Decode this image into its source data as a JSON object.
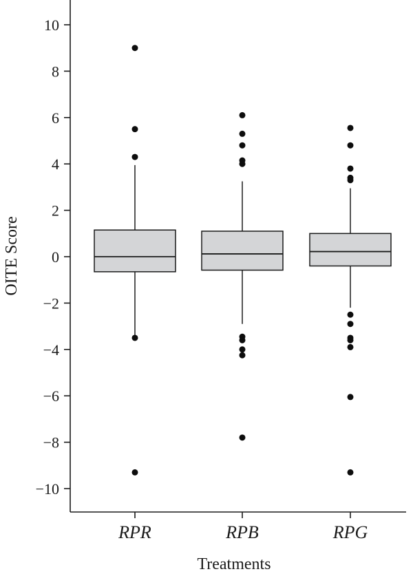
{
  "chart_data": {
    "type": "box",
    "xlabel": "Treatments",
    "ylabel": "OITE Score",
    "ylim": [
      -11,
      11
    ],
    "yticks": [
      10,
      8,
      6,
      4,
      2,
      0,
      -2,
      -4,
      -6,
      -8,
      -10
    ],
    "ytick_labels": [
      "10",
      "8",
      "6",
      "4",
      "2",
      "0",
      "−2",
      "−4",
      "−6",
      "−8",
      "−10"
    ],
    "categories": [
      "RPR",
      "RPB",
      "RPG"
    ],
    "box_color": "#d4d5d7",
    "boxes": [
      {
        "name": "RPR",
        "whisker_low": -3.4,
        "q1": -0.65,
        "median": 0.0,
        "q3": 1.15,
        "whisker_high": 3.95,
        "outliers": [
          9.0,
          5.5,
          4.3,
          -3.5,
          -9.3
        ]
      },
      {
        "name": "RPB",
        "whisker_low": -2.9,
        "q1": -0.58,
        "median": 0.12,
        "q3": 1.1,
        "whisker_high": 3.25,
        "outliers": [
          6.1,
          5.3,
          4.8,
          4.15,
          4.0,
          -3.45,
          -3.6,
          -4.0,
          -4.25,
          -7.8
        ]
      },
      {
        "name": "RPG",
        "whisker_low": -2.2,
        "q1": -0.4,
        "median": 0.22,
        "q3": 1.0,
        "whisker_high": 2.95,
        "outliers": [
          5.55,
          4.8,
          3.8,
          3.4,
          3.3,
          -2.5,
          -2.9,
          -3.5,
          -3.6,
          -3.9,
          -6.05,
          -9.3
        ]
      }
    ]
  }
}
